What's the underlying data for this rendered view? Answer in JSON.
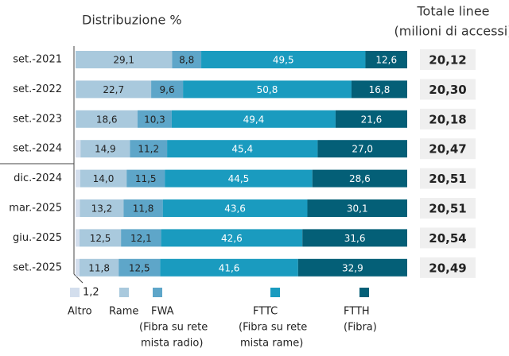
{
  "chart_data": {
    "type": "stacked-bar-horizontal",
    "title": "Distribuzione %",
    "totals_title": [
      "Totale linee",
      "(milioni di accessi)"
    ],
    "categories": [
      "set.-2021",
      "set.-2022",
      "set.-2023",
      "set.-2024",
      "dic.-2024",
      "mar.-2025",
      "giu.-2025",
      "set.-2025"
    ],
    "xlim": [
      0,
      100
    ],
    "series": [
      {
        "name": "Altro",
        "legend_notes": [],
        "color": "#d3deed",
        "values": [
          0,
          0.1,
          0.1,
          1.5,
          1.4,
          1.3,
          1.2,
          1.2
        ],
        "value_labels": [
          null,
          null,
          null,
          null,
          null,
          null,
          null,
          "1,2"
        ]
      },
      {
        "name": "Rame",
        "legend_notes": [],
        "color": "#a9c9dd",
        "values": [
          29.1,
          22.7,
          18.6,
          14.9,
          14.0,
          13.2,
          12.5,
          11.8
        ],
        "value_labels": [
          "29,1",
          "22,7",
          "18,6",
          "14,9",
          "14,0",
          "13,2",
          "12,5",
          "11,8"
        ]
      },
      {
        "name": "FWA",
        "legend_notes": [
          "(Fibra su rete",
          "mista radio)"
        ],
        "color": "#5ea6c9",
        "values": [
          8.8,
          9.6,
          10.3,
          11.2,
          11.5,
          11.8,
          12.1,
          12.5
        ],
        "value_labels": [
          "8,8",
          "9,6",
          "10,3",
          "11,2",
          "11,5",
          "11,8",
          "12,1",
          "12,5"
        ]
      },
      {
        "name": "FTTC",
        "legend_notes": [
          "(Fibra su rete",
          "mista rame)"
        ],
        "color": "#1a9bbf",
        "values": [
          49.5,
          50.8,
          49.4,
          45.4,
          44.5,
          43.6,
          42.6,
          41.6
        ],
        "value_labels": [
          "49,5",
          "50,8",
          "49,4",
          "45,4",
          "44,5",
          "43,6",
          "42,6",
          "41,6"
        ]
      },
      {
        "name": "FTTH",
        "legend_notes": [
          "(Fibra)"
        ],
        "color": "#045f77",
        "values": [
          12.6,
          16.8,
          21.6,
          27.0,
          28.6,
          30.1,
          31.6,
          32.9
        ],
        "value_labels": [
          "12,6",
          "16,8",
          "21,6",
          "27,0",
          "28,6",
          "30,1",
          "31,6",
          "32,9"
        ]
      }
    ],
    "totals": {
      "values": [
        20.12,
        20.3,
        20.18,
        20.47,
        20.51,
        20.51,
        20.54,
        20.49
      ],
      "value_labels": [
        "20,12",
        "20,30",
        "20,18",
        "20,47",
        "20,51",
        "20,51",
        "20,54",
        "20,49"
      ]
    }
  }
}
